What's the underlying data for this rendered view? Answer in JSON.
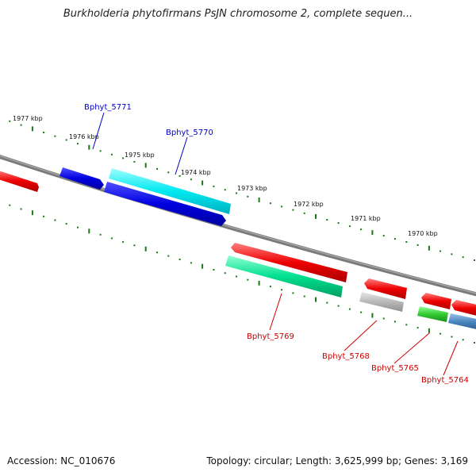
{
  "title": "Burkholderia phytofirmans PsJN chromosome 2, complete sequen...",
  "footer": {
    "accession": "Accession: NC_010676",
    "stats": "Topology: circular; Length: 3,625,999 bp; Genes: 3,169"
  },
  "scale_labels": [
    "1977 kbp",
    "1976 kbp",
    "1975 kbp",
    "1974 kbp",
    "1973 kbp",
    "1972 kbp",
    "1971 kbp",
    "1970 kbp"
  ],
  "gene_labels": [
    "Bphyt_5771",
    "Bphyt_5770",
    "Bphyt_5769",
    "Bphyt_5768",
    "Bphyt_5765",
    "Bphyt_5764"
  ],
  "colors": {
    "backbone": "#808080",
    "ticks": "#1a7a1a",
    "forward_label": "#0000cc",
    "reverse_label": "#cc0000",
    "red": "#ee0000",
    "blue": "#0000e0",
    "cyan": "#00e8f0",
    "teal": "#00e090",
    "gray": "#b0b0b0",
    "green": "#33cc33",
    "steel": "#4a86c0"
  }
}
